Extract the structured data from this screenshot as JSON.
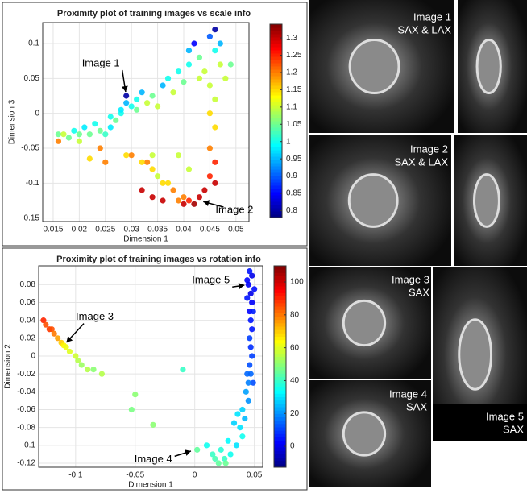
{
  "chart_data": [
    {
      "type": "scatter",
      "title": "Proximity plot of training images vs scale info",
      "x_label": "Dimension 1",
      "y_label": "Dimension 3",
      "xlim": [
        0.013,
        0.0525
      ],
      "ylim": [
        -0.155,
        0.13
      ],
      "xticks": [
        0.015,
        0.02,
        0.025,
        0.03,
        0.035,
        0.04,
        0.045,
        0.05
      ],
      "yticks": [
        -0.15,
        -0.1,
        -0.05,
        0,
        0.05,
        0.1
      ],
      "clim": [
        0.78,
        1.34
      ],
      "cticks": [
        0.8,
        0.85,
        0.9,
        0.95,
        1,
        1.05,
        1.1,
        1.15,
        1.2,
        1.25,
        1.3
      ],
      "colormap": "jet",
      "grid": true,
      "x": [
        0.016,
        0.016,
        0.017,
        0.018,
        0.019,
        0.02,
        0.02,
        0.021,
        0.022,
        0.023,
        0.024,
        0.025,
        0.026,
        0.026,
        0.027,
        0.028,
        0.028,
        0.029,
        0.029,
        0.03,
        0.031,
        0.031,
        0.032,
        0.033,
        0.034,
        0.035,
        0.036,
        0.037,
        0.038,
        0.039,
        0.04,
        0.041,
        0.041,
        0.042,
        0.043,
        0.043,
        0.044,
        0.045,
        0.045,
        0.046,
        0.046,
        0.047,
        0.047,
        0.048,
        0.049,
        0.046,
        0.045,
        0.046,
        0.045,
        0.046,
        0.045,
        0.046,
        0.044,
        0.043,
        0.042,
        0.041,
        0.04,
        0.04,
        0.039,
        0.038,
        0.037,
        0.036,
        0.035,
        0.034,
        0.033,
        0.032,
        0.034,
        0.03,
        0.029,
        0.025,
        0.024,
        0.022,
        0.032,
        0.034,
        0.036,
        0.039,
        0.041
      ],
      "values": [
        -0.03,
        -0.04,
        -0.03,
        -0.035,
        -0.025,
        -0.03,
        -0.04,
        -0.02,
        -0.03,
        -0.015,
        -0.025,
        -0.03,
        -0.02,
        -0.005,
        -0.01,
        0.0,
        0.005,
        0.015,
        0.025,
        0.01,
        0.005,
        0.02,
        0.03,
        0.015,
        0.025,
        0.01,
        0.04,
        0.05,
        0.03,
        0.06,
        0.045,
        0.07,
        0.09,
        0.1,
        0.08,
        0.05,
        0.06,
        0.04,
        0.11,
        0.12,
        0.09,
        0.1,
        0.07,
        0.05,
        0.07,
        0.02,
        0.0,
        -0.02,
        -0.05,
        -0.07,
        -0.09,
        -0.1,
        -0.11,
        -0.12,
        -0.13,
        -0.125,
        -0.12,
        -0.13,
        -0.125,
        -0.11,
        -0.1,
        -0.1,
        -0.09,
        -0.08,
        -0.07,
        -0.07,
        -0.06,
        -0.06,
        -0.06,
        -0.07,
        -0.05,
        -0.065,
        -0.11,
        -0.12,
        -0.125,
        -0.06,
        -0.08
      ],
      "color_values": [
        1.05,
        1.2,
        1.1,
        1.05,
        1.0,
        1.05,
        1.1,
        0.98,
        1.05,
        1.0,
        1.05,
        1.02,
        0.98,
        1.0,
        1.05,
        1.0,
        0.98,
        0.95,
        0.8,
        1.0,
        1.05,
        1.0,
        0.95,
        1.1,
        1.05,
        1.1,
        0.95,
        1.0,
        1.1,
        1.0,
        1.05,
        1.0,
        0.95,
        0.85,
        1.05,
        1.1,
        1.1,
        1.1,
        0.9,
        0.8,
        1.0,
        0.95,
        1.1,
        1.1,
        1.05,
        1.1,
        1.15,
        1.15,
        1.2,
        1.25,
        1.25,
        1.3,
        1.3,
        1.3,
        1.32,
        1.25,
        1.2,
        1.3,
        1.2,
        1.2,
        1.15,
        1.15,
        1.1,
        1.15,
        1.2,
        1.15,
        1.1,
        1.2,
        1.15,
        1.2,
        1.2,
        1.15,
        1.3,
        1.3,
        1.3,
        1.1,
        1.1
      ],
      "annotations": [
        {
          "text": "Image 1",
          "x": 0.029,
          "y": 0.025
        },
        {
          "text": "Image 2",
          "x": 0.043,
          "y": -0.125
        }
      ]
    },
    {
      "type": "scatter",
      "title": "Proximity plot of training images vs rotation info",
      "x_label": "Dimension 1",
      "y_label": "Dimension 2",
      "xlim": [
        -0.131,
        0.057
      ],
      "ylim": [
        -0.1245,
        0.101
      ],
      "xticks": [
        -0.1,
        -0.05,
        0,
        0.05
      ],
      "yticks": [
        -0.12,
        -0.1,
        -0.08,
        -0.06,
        -0.04,
        -0.02,
        0,
        0.02,
        0.04,
        0.06,
        0.08
      ],
      "clim": [
        -12.7,
        109.8
      ],
      "cticks": [
        0,
        20,
        40,
        60,
        80,
        100
      ],
      "colormap": "jet",
      "grid": true,
      "x": [
        -0.127,
        -0.125,
        -0.122,
        -0.12,
        -0.118,
        -0.115,
        -0.112,
        -0.11,
        -0.108,
        -0.105,
        -0.1,
        -0.098,
        -0.095,
        -0.09,
        -0.085,
        -0.078,
        -0.05,
        -0.053,
        -0.035,
        -0.01,
        0.002,
        0.015,
        0.02,
        0.025,
        0.03,
        0.035,
        0.04,
        0.038,
        0.042,
        0.04,
        0.045,
        0.043,
        0.045,
        0.047,
        0.046,
        0.048,
        0.047,
        0.046,
        0.048,
        0.047,
        0.046,
        0.048,
        0.047,
        0.045,
        0.048,
        0.046,
        0.044,
        0.05,
        0.049,
        0.044,
        0.028,
        0.033,
        0.036,
        0.017,
        0.022,
        0.01,
        0.026,
        0.044,
        0.049
      ],
      "values": [
        0.04,
        0.035,
        0.03,
        0.03,
        0.025,
        0.02,
        0.015,
        0.012,
        0.01,
        0.005,
        0.0,
        -0.005,
        -0.01,
        -0.015,
        -0.015,
        -0.02,
        -0.043,
        -0.06,
        -0.077,
        -0.015,
        -0.105,
        -0.11,
        -0.12,
        -0.115,
        -0.11,
        -0.1,
        -0.09,
        -0.08,
        -0.07,
        -0.06,
        -0.05,
        -0.04,
        -0.03,
        -0.02,
        -0.01,
        0.0,
        0.01,
        0.02,
        0.03,
        0.04,
        0.05,
        0.06,
        0.07,
        0.08,
        0.09,
        0.095,
        0.085,
        0.075,
        0.05,
        0.065,
        -0.095,
        -0.075,
        -0.065,
        -0.115,
        -0.105,
        -0.1,
        -0.12,
        -0.02,
        -0.03
      ],
      "color_values": [
        90,
        85,
        88,
        85,
        80,
        75,
        70,
        65,
        62,
        60,
        58,
        55,
        52,
        55,
        50,
        55,
        50,
        48,
        50,
        40,
        45,
        40,
        45,
        40,
        35,
        30,
        35,
        30,
        25,
        28,
        20,
        22,
        18,
        15,
        12,
        10,
        8,
        10,
        5,
        5,
        3,
        2,
        0,
        2,
        0,
        5,
        3,
        4,
        6,
        5,
        33,
        28,
        30,
        42,
        38,
        35,
        46,
        15,
        12
      ],
      "annotations": [
        {
          "text": "Image 3",
          "x": -0.11,
          "y": 0.012
        },
        {
          "text": "Image 4",
          "x": 0.0,
          "y": -0.105
        },
        {
          "text": "Image 5",
          "x": 0.045,
          "y": 0.08
        }
      ]
    }
  ],
  "images": [
    {
      "label": [
        "Image 1",
        "SAX & LAX"
      ]
    },
    {
      "label": []
    },
    {
      "label": [
        "Image 2",
        "SAX & LAX"
      ]
    },
    {
      "label": []
    },
    {
      "label": [
        "Image 3",
        "SAX"
      ]
    },
    {
      "label": [
        "Image 5",
        "SAX"
      ]
    },
    {
      "label": [
        "Image 4",
        "SAX"
      ]
    }
  ]
}
